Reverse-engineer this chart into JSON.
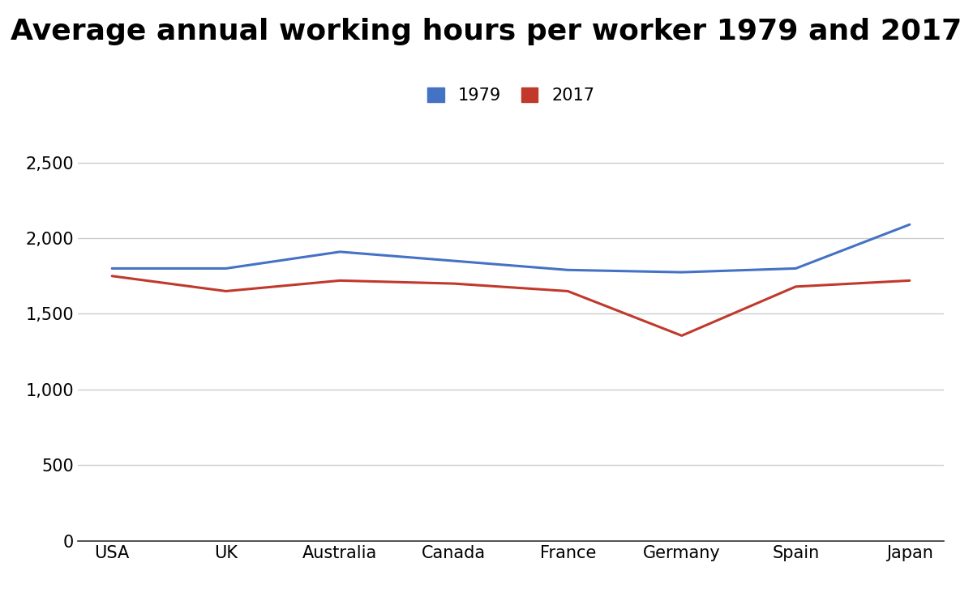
{
  "title": "Average annual working hours per worker 1979 and 2017",
  "categories": [
    "USA",
    "UK",
    "Australia",
    "Canada",
    "France",
    "Germany",
    "Spain",
    "Japan"
  ],
  "series": [
    {
      "label": "1979",
      "color": "#4472c4",
      "values": [
        1800,
        1800,
        1910,
        1850,
        1790,
        1775,
        1800,
        2090
      ]
    },
    {
      "label": "2017",
      "color": "#c0392b",
      "values": [
        1750,
        1650,
        1720,
        1700,
        1650,
        1356,
        1680,
        1720
      ]
    }
  ],
  "ylim": [
    0,
    2700
  ],
  "yticks": [
    0,
    500,
    1000,
    1500,
    2000,
    2500
  ],
  "ytick_labels": [
    "0",
    "500",
    "1,000",
    "1,500",
    "2,000",
    "2,500"
  ],
  "background_color": "#ffffff",
  "grid_color": "#cccccc",
  "title_fontsize": 26,
  "tick_fontsize": 15,
  "legend_fontsize": 15,
  "line_width": 2.2
}
